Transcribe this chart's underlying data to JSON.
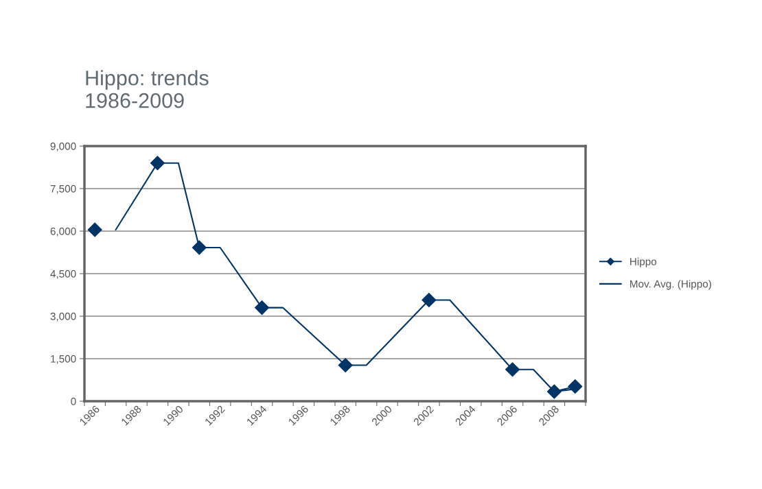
{
  "chart_data": {
    "type": "line",
    "title": "Hippo: trends\n1986-2009",
    "categories": [
      "1986",
      null,
      "1988",
      null,
      "1990",
      null,
      "1992",
      null,
      "1994",
      null,
      "1996",
      null,
      "1998",
      null,
      "2000",
      null,
      "2002",
      null,
      "2004",
      null,
      "2006",
      null,
      "2008",
      null
    ],
    "series": [
      {
        "name": "Hippo",
        "color": "#003366",
        "marker": "diamond",
        "values": [
          6050,
          null,
          null,
          8400,
          null,
          5420,
          null,
          null,
          3300,
          null,
          null,
          null,
          1270,
          null,
          null,
          null,
          3570,
          null,
          null,
          null,
          1120,
          null,
          340,
          520
        ]
      },
      {
        "name": "Mov. Avg. (Hippo)",
        "color": "#003366",
        "marker": "none",
        "values": [
          null,
          6050,
          null,
          8400,
          8400,
          5420,
          5420,
          null,
          3300,
          3300,
          null,
          null,
          1270,
          1270,
          null,
          null,
          3570,
          3570,
          null,
          null,
          1120,
          1120,
          340,
          430
        ]
      }
    ],
    "ylim": [
      0,
      9000
    ],
    "yticks": [
      {
        "value": 0,
        "label": "0"
      },
      {
        "value": 1500,
        "label": "1,500"
      },
      {
        "value": 3000,
        "label": "3,000"
      },
      {
        "value": 4500,
        "label": "4,500"
      },
      {
        "value": 6000,
        "label": "6,000"
      },
      {
        "value": 7500,
        "label": "7,500"
      },
      {
        "value": 9000,
        "label": "9,000"
      }
    ],
    "grid": "y",
    "legend": "right"
  }
}
